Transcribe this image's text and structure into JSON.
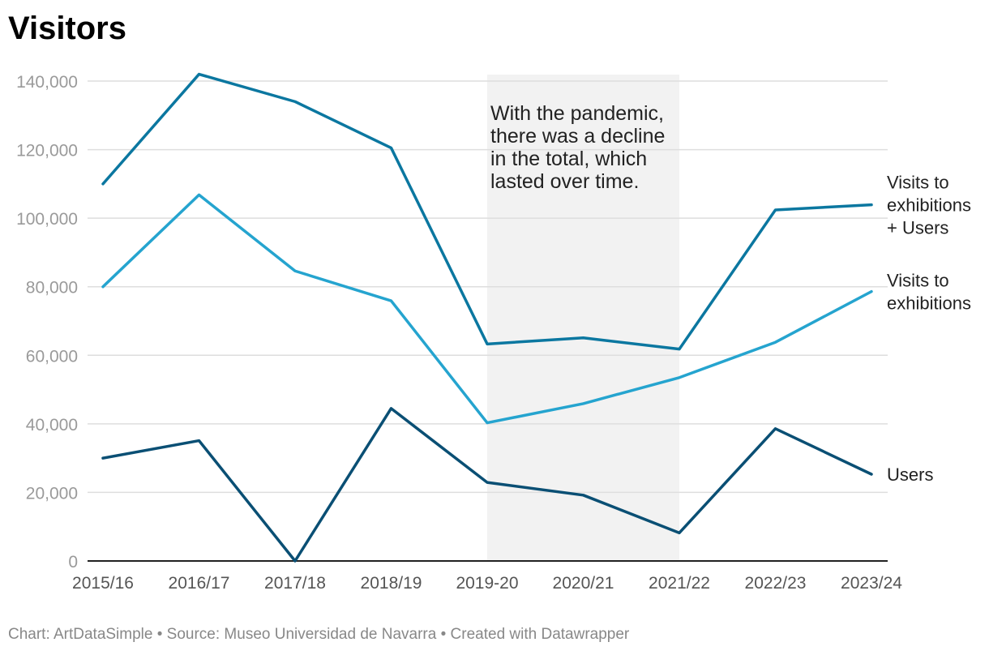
{
  "header": {
    "title": "Visitors"
  },
  "footer": {
    "credits": "Chart: ArtDataSimple • Source: Museo Universidad de Navarra • Created with Datawrapper"
  },
  "chart_data": {
    "type": "line",
    "title": "Visitors",
    "xlabel": "",
    "ylabel": "",
    "categories": [
      "2015/16",
      "2016/17",
      "2017/18",
      "2018/19",
      "2019-20",
      "2020/21",
      "2021/22",
      "2022/23",
      "2023/24"
    ],
    "ylim": [
      0,
      140000
    ],
    "yticks": [
      0,
      20000,
      40000,
      60000,
      80000,
      100000,
      120000,
      140000
    ],
    "ytick_labels": [
      "0",
      "20,000",
      "40,000",
      "60,000",
      "80,000",
      "100,000",
      "120,000",
      "140,000"
    ],
    "grid": "horizontal",
    "series": [
      {
        "name": "Visits to exhibitions + Users",
        "label_lines": [
          "Visits to",
          "exhibitions",
          "+ Users"
        ],
        "color": "#0b77a0",
        "values": [
          110000,
          142000,
          134000,
          120500,
          63300,
          65100,
          61800,
          102400,
          103900
        ]
      },
      {
        "name": "Visits to exhibitions",
        "label_lines": [
          "Visits to",
          "exhibitions"
        ],
        "color": "#25a4cf",
        "values": [
          80000,
          106800,
          84600,
          75900,
          40300,
          45900,
          53500,
          63800,
          78600
        ]
      },
      {
        "name": "Users",
        "label_lines": [
          "Users"
        ],
        "color": "#0a4f74",
        "values": [
          30000,
          35100,
          0,
          44500,
          22900,
          19200,
          8200,
          38600,
          25300
        ]
      }
    ],
    "highlight_band": {
      "from": "2019-20",
      "to": "2021/22",
      "color": "#f2f2f2"
    },
    "annotation": {
      "lines": [
        "With the pandemic,",
        "there was a decline",
        "in the total, which",
        "lasted over time."
      ]
    }
  }
}
